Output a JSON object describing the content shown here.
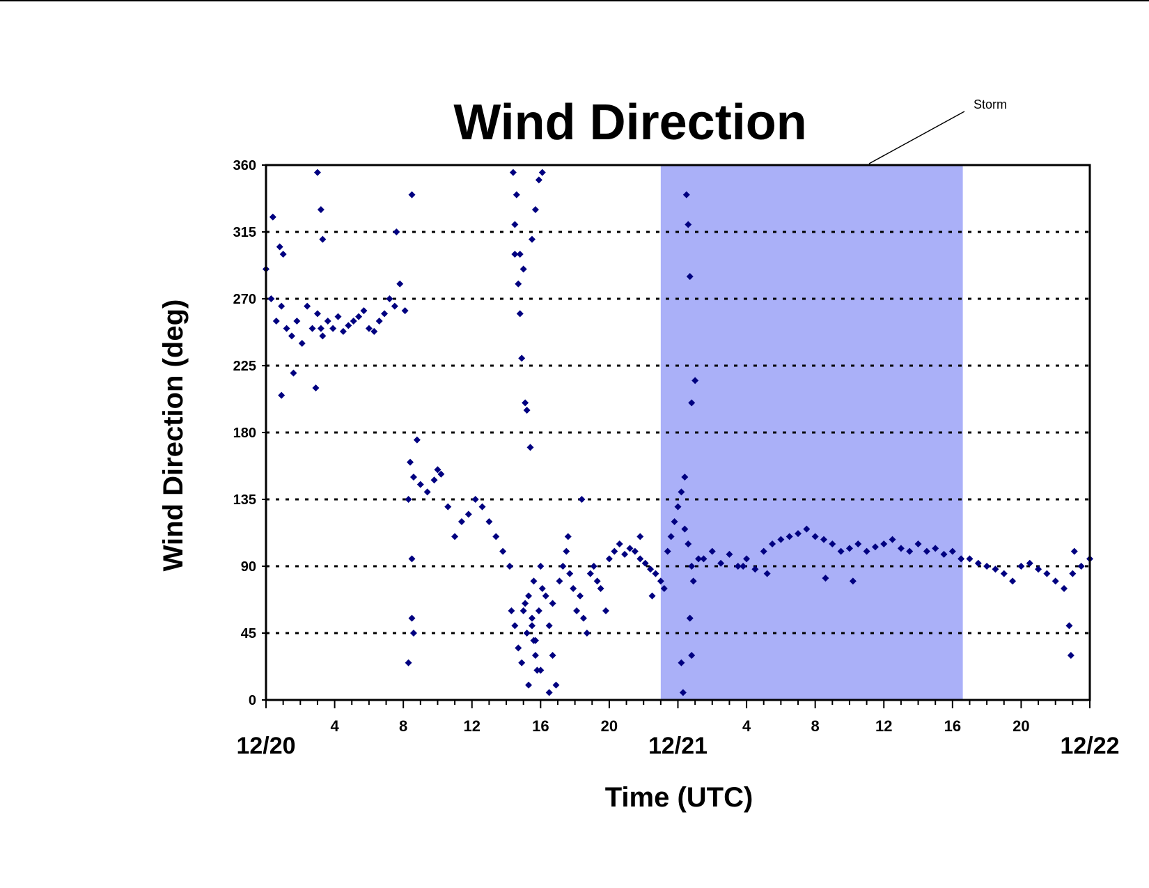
{
  "chart_data": {
    "type": "scatter",
    "title": "Wind Direction",
    "xlabel": "Time (UTC)",
    "ylabel": "Wind Direction (deg)",
    "ylim": [
      0,
      360
    ],
    "yticks": [
      0,
      45,
      90,
      135,
      180,
      225,
      270,
      315,
      360
    ],
    "xlim_hours": [
      0,
      48
    ],
    "hour_ticks": [
      {
        "hour": 4,
        "label": "4"
      },
      {
        "hour": 8,
        "label": "8"
      },
      {
        "hour": 12,
        "label": "12"
      },
      {
        "hour": 16,
        "label": "16"
      },
      {
        "hour": 20,
        "label": "20"
      },
      {
        "hour": 28,
        "label": "4"
      },
      {
        "hour": 32,
        "label": "8"
      },
      {
        "hour": 36,
        "label": "12"
      },
      {
        "hour": 40,
        "label": "16"
      },
      {
        "hour": 44,
        "label": "20"
      }
    ],
    "date_labels": [
      {
        "hour": 0,
        "label": "12/20"
      },
      {
        "hour": 24,
        "label": "12/21"
      },
      {
        "hour": 48,
        "label": "12/22"
      }
    ],
    "grid": "horizontal-dashed",
    "storm_period": {
      "start_hour": 23,
      "end_hour": 40.6,
      "label": "Storm",
      "color": "#aab0f8"
    },
    "marker_color": "#000080",
    "series": [
      {
        "x": [
          0.0,
          0.3,
          0.6,
          0.9,
          1.2,
          1.5,
          1.8,
          2.1,
          2.4,
          2.7,
          3.0,
          3.3,
          3.6,
          3.9,
          4.2,
          4.5,
          4.8,
          5.1,
          5.4,
          5.7,
          6.0,
          6.3,
          6.6,
          6.9,
          7.2,
          7.5,
          7.8,
          8.1,
          0.4,
          0.8,
          1.0,
          3.0,
          3.2,
          3.3,
          1.6,
          0.9,
          8.5,
          7.6,
          3.2,
          2.9,
          8.4,
          8.6,
          9.0,
          9.4,
          9.8,
          10.2,
          10.6,
          11.0,
          11.4,
          11.8,
          12.2,
          12.6,
          13.0,
          13.4,
          13.8,
          14.2,
          8.3,
          8.5,
          8.5,
          8.6,
          8.3,
          8.8,
          10.0,
          14.5,
          14.7,
          14.8,
          14.9,
          15.1,
          15.2,
          15.4,
          15.5,
          15.6,
          15.7,
          15.8,
          15.3,
          15.0,
          16.0,
          16.5,
          14.4,
          14.6,
          14.5,
          14.8,
          15.0,
          15.5,
          15.7,
          15.9,
          16.1,
          14.3,
          14.5,
          14.7,
          14.9,
          15.1,
          15.3,
          15.5,
          15.7,
          15.9,
          16.1,
          16.3,
          16.5,
          16.7,
          16.9,
          15.2,
          15.6,
          16.0,
          16.7,
          17.1,
          17.3,
          17.5,
          17.7,
          17.9,
          18.1,
          18.3,
          18.5,
          18.7,
          18.9,
          19.1,
          19.3,
          19.5,
          17.6,
          18.4,
          19.8,
          20.0,
          20.3,
          20.6,
          20.9,
          21.2,
          21.5,
          21.8,
          22.1,
          22.4,
          22.7,
          23.0,
          23.2,
          22.5,
          21.8,
          23.4,
          23.6,
          23.8,
          24.0,
          24.2,
          24.4,
          24.6,
          24.8,
          24.5,
          24.6,
          24.7,
          24.8,
          24.9,
          24.4,
          24.7,
          24.8,
          24.3,
          24.2,
          25.0,
          25.2,
          25.5,
          26.0,
          26.5,
          27.0,
          27.5,
          28.0,
          28.5,
          29.0,
          29.5,
          30.0,
          30.5,
          31.0,
          31.5,
          32.0,
          32.5,
          33.0,
          33.5,
          34.0,
          34.5,
          35.0,
          35.5,
          36.0,
          36.5,
          37.0,
          37.5,
          38.0,
          38.5,
          39.0,
          39.5,
          40.0,
          40.5,
          27.8,
          29.2,
          32.6,
          34.2,
          41.0,
          41.5,
          42.0,
          42.5,
          43.0,
          43.5,
          44.0,
          44.5,
          45.0,
          45.5,
          46.0,
          46.5,
          47.0,
          47.5,
          48.0,
          46.8,
          46.9,
          47.1
        ],
        "y": [
          290,
          270,
          255,
          265,
          250,
          245,
          255,
          240,
          265,
          250,
          260,
          245,
          255,
          250,
          258,
          248,
          252,
          255,
          258,
          262,
          250,
          248,
          255,
          260,
          270,
          265,
          280,
          262,
          325,
          305,
          300,
          355,
          330,
          310,
          220,
          205,
          340,
          315,
          250,
          210,
          160,
          150,
          145,
          140,
          148,
          152,
          130,
          110,
          120,
          125,
          135,
          130,
          120,
          110,
          100,
          90,
          135,
          95,
          55,
          45,
          25,
          175,
          155,
          300,
          280,
          260,
          230,
          200,
          195,
          170,
          50,
          40,
          30,
          20,
          10,
          60,
          20,
          5,
          355,
          340,
          320,
          300,
          290,
          310,
          330,
          350,
          355,
          60,
          50,
          35,
          25,
          65,
          70,
          55,
          40,
          60,
          75,
          70,
          50,
          30,
          10,
          45,
          80,
          90,
          65,
          80,
          90,
          100,
          85,
          75,
          60,
          70,
          55,
          45,
          85,
          90,
          80,
          75,
          110,
          135,
          60,
          95,
          100,
          105,
          98,
          102,
          100,
          95,
          92,
          88,
          85,
          80,
          75,
          70,
          110,
          100,
          110,
          120,
          130,
          140,
          115,
          105,
          90,
          340,
          320,
          285,
          200,
          80,
          150,
          55,
          30,
          5,
          25,
          215,
          95,
          95,
          100,
          92,
          98,
          90,
          95,
          88,
          100,
          105,
          108,
          110,
          112,
          115,
          110,
          108,
          105,
          100,
          102,
          105,
          100,
          103,
          105,
          108,
          102,
          100,
          105,
          100,
          102,
          98,
          100,
          95,
          90,
          85,
          82,
          80,
          95,
          92,
          90,
          88,
          85,
          80,
          90,
          92,
          88,
          85,
          80,
          75,
          85,
          90,
          95,
          50,
          30,
          100
        ]
      }
    ]
  }
}
